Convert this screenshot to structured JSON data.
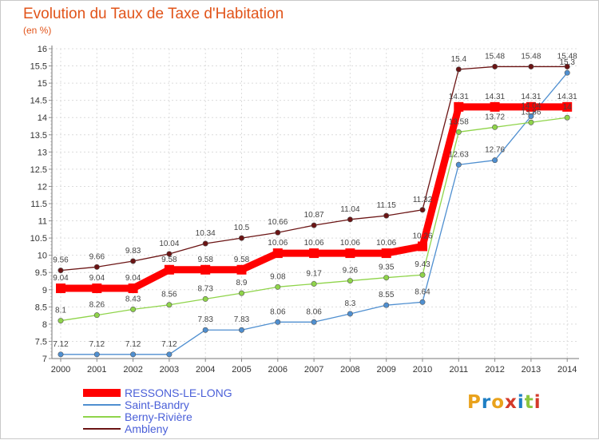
{
  "chart_data": {
    "type": "line",
    "title": "Evolution du Taux de Taxe d'Habitation",
    "subtitle": "(en %)",
    "xlabel": "",
    "ylabel": "",
    "ylim": [
      7,
      16
    ],
    "yticks": [
      "7",
      "7.5",
      "8",
      "8.5",
      "9",
      "9.5",
      "10",
      "10.5",
      "11",
      "11.5",
      "12",
      "12.5",
      "13",
      "13.5",
      "14",
      "14.5",
      "15",
      "15.5",
      "16"
    ],
    "x": [
      "2000",
      "2001",
      "2002",
      "2003",
      "2004",
      "2005",
      "2006",
      "2007",
      "2008",
      "2009",
      "2010",
      "2011",
      "2012",
      "2013",
      "2014"
    ],
    "grid": true,
    "legend_position": "bottom-left",
    "series": [
      {
        "name": "Ambleny",
        "color": "#6b1414",
        "values": [
          9.56,
          9.66,
          9.83,
          10.04,
          10.34,
          10.5,
          10.66,
          10.87,
          11.04,
          11.15,
          11.32,
          15.4,
          15.48,
          15.48,
          15.48
        ],
        "labels": [
          "9.56",
          "9.66",
          "9.83",
          "10.04",
          "10.34",
          "10.5",
          "10.66",
          "10.87",
          "11.04",
          "11.15",
          "11.32",
          "15.4",
          "15.48",
          "15.48",
          "15.48"
        ]
      },
      {
        "name": "Saint-Bandry",
        "color": "#4f8fd0",
        "values": [
          7.12,
          7.12,
          7.12,
          7.12,
          7.83,
          7.83,
          8.06,
          8.06,
          8.3,
          8.55,
          8.64,
          12.63,
          12.76,
          14.04,
          15.3
        ],
        "labels": [
          "7.12",
          "7.12",
          "7.12",
          "7.12",
          "7.83",
          "7.83",
          "8.06",
          "8.06",
          "8.3",
          "8.55",
          "8.64",
          "12.63",
          "12.76",
          "14.04",
          "15.3"
        ]
      },
      {
        "name": "Berny-Rivière",
        "color": "#8fd44a",
        "values": [
          8.1,
          8.26,
          8.43,
          8.56,
          8.73,
          8.9,
          9.08,
          9.17,
          9.26,
          9.35,
          9.43,
          13.58,
          13.72,
          13.86,
          14
        ],
        "labels": [
          "8.1",
          "8.26",
          "8.43",
          "8.56",
          "8.73",
          "8.9",
          "9.08",
          "9.17",
          "9.26",
          "9.35",
          "9.43",
          "13.58",
          "13.72",
          "13.86",
          "14"
        ]
      },
      {
        "name": "RESSONS-LE-LONG",
        "color": "#ff0000",
        "values": [
          9.04,
          9.04,
          9.04,
          9.58,
          9.58,
          9.58,
          10.06,
          10.06,
          10.06,
          10.06,
          10.26,
          14.31,
          14.31,
          14.31,
          14.31
        ],
        "labels": [
          "9.04",
          "9.04",
          "9.04",
          "9.58",
          "9.58",
          "9.58",
          "10.06",
          "10.06",
          "10.06",
          "10.06",
          "10.26",
          "14.31",
          "14.31",
          "14.31",
          "14.31"
        ]
      }
    ],
    "legend": [
      "RESSONS-LE-LONG",
      "Saint-Bandry",
      "Berny-Rivière",
      "Ambleny"
    ]
  },
  "branding": {
    "logo_letters": [
      "P",
      "r",
      "o",
      "x",
      "i",
      "t",
      "i"
    ],
    "logo_colors": [
      "#e9a21c",
      "#1f7fc4",
      "#e9a21c",
      "#d43a2a",
      "#1f7fc4",
      "#8cc63f",
      "#d43a2a"
    ]
  }
}
